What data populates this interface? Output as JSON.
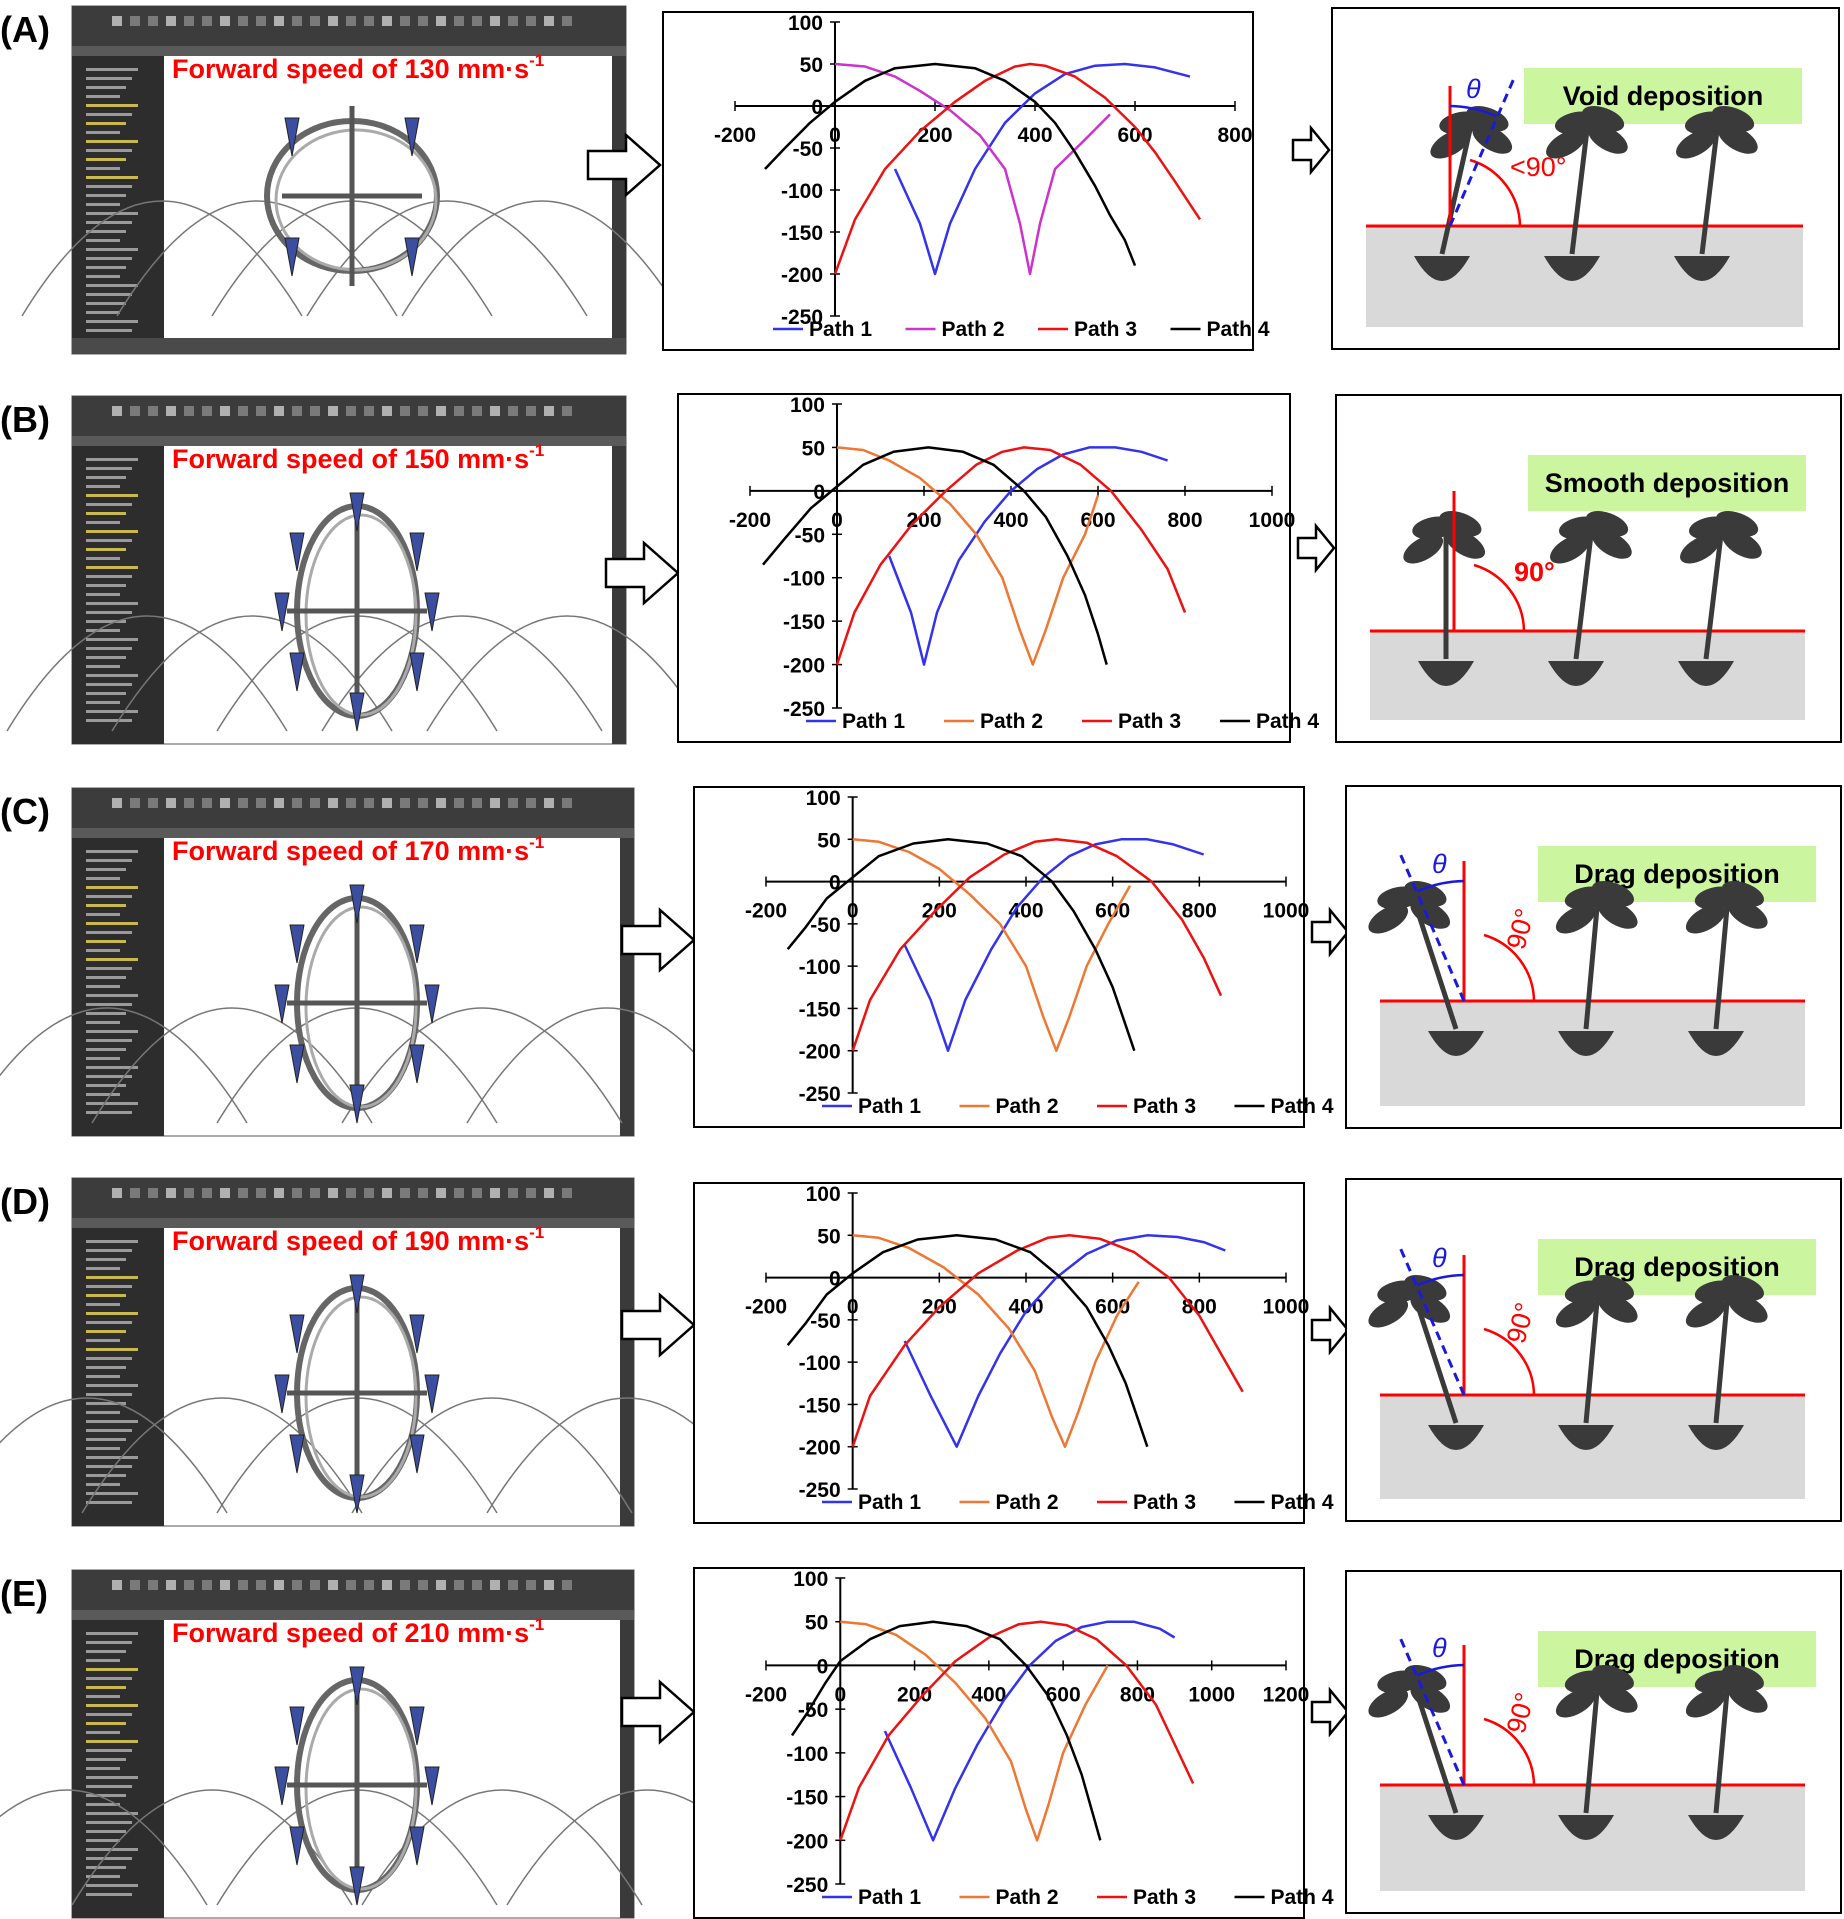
{
  "colors": {
    "path1": "#3333ee",
    "path2_row_a": "#cc33cc",
    "path2": "#ee7733",
    "path3": "#ee1111",
    "path4": "#000000",
    "speed_text": "#ff0000",
    "deposition_label_bg": "#ccf5a0",
    "soil": "#d9d9d9",
    "plant": "#3a3a3a",
    "angle_theta": "#1a1adc",
    "angle_right": "#ff0000",
    "cad_toolbar": "#3c3c3c",
    "cad_tree": "#2d2d2d",
    "cad_tree_highlight": "#c9b84a",
    "cad_blade": "#3c4ea0"
  },
  "arrow_icon": "right-arrow-outline",
  "rows": [
    {
      "label": "(A)",
      "speed_prefix": "Forward speed of 130 mm·s",
      "speed_sup": "-1",
      "deposition": "Void deposition",
      "right_angle_text": "<90°",
      "show_theta": true,
      "theta_symbol": "θ",
      "theta_side": "right",
      "chart_data": {
        "type": "line",
        "title": "",
        "xlabel": "",
        "ylabel": "",
        "xlim": [
          -200,
          800
        ],
        "ylim": [
          -250,
          100
        ],
        "xticks": [
          "-200",
          "0",
          "200",
          "400",
          "600",
          "800"
        ],
        "yticks": [
          "100",
          "50",
          "0",
          "-50",
          "-100",
          "-150",
          "-200",
          "-250"
        ],
        "legend": "bottom",
        "series": [
          {
            "name": "Path 1",
            "color": "#3333ee",
            "x": [
              120,
              170,
              200,
              230,
              280,
              340,
              400,
              460,
              520,
              580,
              640,
              710
            ],
            "y": [
              -75,
              -140,
              -200,
              -140,
              -75,
              -20,
              15,
              38,
              48,
              50,
              46,
              35
            ]
          },
          {
            "name": "Path 2",
            "color": "#cc33cc",
            "x": [
              0,
              60,
              120,
              170,
              230,
              290,
              340,
              370,
              390,
              410,
              440,
              500,
              550
            ],
            "y": [
              50,
              47,
              35,
              18,
              -5,
              -35,
              -75,
              -140,
              -200,
              -140,
              -75,
              -40,
              -10
            ]
          },
          {
            "name": "Path 3",
            "color": "#ee1111",
            "x": [
              0,
              40,
              100,
              170,
              240,
              300,
              360,
              390,
              420,
              480,
              540,
              600,
              640,
              680,
              730
            ],
            "y": [
              -200,
              -135,
              -75,
              -30,
              5,
              30,
              47,
              50,
              48,
              35,
              10,
              -25,
              -55,
              -90,
              -135
            ]
          },
          {
            "name": "Path 4",
            "color": "#000000",
            "x": [
              -140,
              -100,
              -50,
              0,
              60,
              120,
              200,
              280,
              340,
              400,
              440,
              480,
              520,
              550,
              580,
              600
            ],
            "y": [
              -75,
              -50,
              -20,
              5,
              30,
              45,
              50,
              45,
              30,
              5,
              -20,
              -55,
              -95,
              -130,
              -160,
              -190
            ]
          }
        ]
      }
    },
    {
      "label": "(B)",
      "speed_prefix": "Forward speed of 150 mm·s",
      "speed_sup": "-1",
      "deposition": "Smooth deposition",
      "right_angle_text": "90°",
      "show_theta": false,
      "theta_symbol": "",
      "theta_side": "none",
      "chart_data": {
        "type": "line",
        "title": "",
        "xlabel": "",
        "ylabel": "",
        "xlim": [
          -200,
          1000
        ],
        "ylim": [
          -250,
          100
        ],
        "xticks": [
          "-200",
          "0",
          "200",
          "400",
          "600",
          "800",
          "1000"
        ],
        "yticks": [
          "100",
          "50",
          "0",
          "-50",
          "-100",
          "-150",
          "-200",
          "-250"
        ],
        "legend": "bottom",
        "series": [
          {
            "name": "Path 1",
            "color": "#3333ee",
            "x": [
              120,
              170,
              200,
              230,
              280,
              340,
              400,
              460,
              520,
              580,
              640,
              700,
              760
            ],
            "y": [
              -75,
              -140,
              -200,
              -140,
              -80,
              -35,
              0,
              25,
              42,
              50,
              50,
              45,
              35
            ]
          },
          {
            "name": "Path 2",
            "color": "#ee7733",
            "x": [
              0,
              60,
              120,
              190,
              260,
              320,
              380,
              420,
              450,
              480,
              520,
              570,
              600
            ],
            "y": [
              50,
              47,
              35,
              15,
              -15,
              -50,
              -100,
              -160,
              -200,
              -160,
              -100,
              -50,
              -5
            ]
          },
          {
            "name": "Path 3",
            "color": "#ee1111",
            "x": [
              0,
              40,
              100,
              170,
              250,
              320,
              380,
              430,
              490,
              560,
              630,
              700,
              760,
              800
            ],
            "y": [
              -200,
              -140,
              -85,
              -40,
              0,
              30,
              45,
              50,
              47,
              30,
              0,
              -45,
              -90,
              -140
            ]
          },
          {
            "name": "Path 4",
            "color": "#000000",
            "x": [
              -170,
              -120,
              -60,
              0,
              60,
              130,
              210,
              290,
              360,
              430,
              480,
              530,
              570,
              600,
              620
            ],
            "y": [
              -85,
              -55,
              -20,
              5,
              30,
              45,
              50,
              45,
              30,
              0,
              -30,
              -75,
              -120,
              -165,
              -200
            ]
          }
        ]
      }
    },
    {
      "label": "(C)",
      "speed_prefix": "Forward speed of 170 mm·s",
      "speed_sup": "-1",
      "deposition": "Drag deposition",
      "right_angle_text": "90°",
      "show_theta": true,
      "theta_symbol": "θ",
      "theta_side": "left",
      "chart_data": {
        "type": "line",
        "title": "",
        "xlabel": "",
        "ylabel": "",
        "xlim": [
          -200,
          1000
        ],
        "ylim": [
          -250,
          100
        ],
        "xticks": [
          "-200",
          "0",
          "200",
          "400",
          "600",
          "800",
          "1000"
        ],
        "yticks": [
          "100",
          "50",
          "0",
          "-50",
          "-100",
          "-150",
          "-200",
          "-250"
        ],
        "legend": "bottom",
        "series": [
          {
            "name": "Path 1",
            "color": "#3333ee",
            "x": [
              120,
              180,
              220,
              260,
              320,
              380,
              440,
              500,
              560,
              620,
              680,
              740,
              810
            ],
            "y": [
              -75,
              -140,
              -200,
              -140,
              -80,
              -30,
              5,
              30,
              44,
              50,
              50,
              44,
              32
            ]
          },
          {
            "name": "Path 2",
            "color": "#ee7733",
            "x": [
              0,
              60,
              130,
              200,
              270,
              340,
              400,
              440,
              470,
              500,
              540,
              590,
              640
            ],
            "y": [
              50,
              47,
              35,
              15,
              -15,
              -50,
              -100,
              -160,
              -200,
              -160,
              -100,
              -50,
              -5
            ]
          },
          {
            "name": "Path 3",
            "color": "#ee1111",
            "x": [
              0,
              40,
              110,
              190,
              270,
              350,
              420,
              470,
              540,
              610,
              690,
              760,
              810,
              850
            ],
            "y": [
              -200,
              -140,
              -80,
              -35,
              5,
              32,
              47,
              50,
              46,
              30,
              0,
              -45,
              -90,
              -135
            ]
          },
          {
            "name": "Path 4",
            "color": "#000000",
            "x": [
              -150,
              -110,
              -60,
              0,
              60,
              140,
              220,
              310,
              390,
              460,
              510,
              560,
              600,
              630,
              650
            ],
            "y": [
              -80,
              -55,
              -20,
              5,
              30,
              45,
              50,
              45,
              30,
              0,
              -35,
              -80,
              -125,
              -170,
              -200
            ]
          }
        ]
      }
    },
    {
      "label": "(D)",
      "speed_prefix": "Forward speed of 190 mm·s",
      "speed_sup": "-1",
      "deposition": "Drag deposition",
      "right_angle_text": "90°",
      "show_theta": true,
      "theta_symbol": "θ",
      "theta_side": "left",
      "chart_data": {
        "type": "line",
        "title": "",
        "xlabel": "",
        "ylabel": "",
        "xlim": [
          -200,
          1000
        ],
        "ylim": [
          -250,
          100
        ],
        "xticks": [
          "-200",
          "0",
          "200",
          "400",
          "600",
          "800",
          "1000"
        ],
        "yticks": [
          "100",
          "50",
          "0",
          "-50",
          "-100",
          "-150",
          "-200",
          "-250"
        ],
        "legend": "bottom",
        "series": [
          {
            "name": "Path 1",
            "color": "#3333ee",
            "x": [
              120,
              180,
              240,
              290,
              340,
              400,
              470,
              540,
              610,
              680,
              750,
              810,
              860
            ],
            "y": [
              -75,
              -140,
              -200,
              -140,
              -90,
              -40,
              0,
              28,
              44,
              50,
              48,
              42,
              32
            ]
          },
          {
            "name": "Path 2",
            "color": "#ee7733",
            "x": [
              0,
              60,
              130,
              210,
              290,
              360,
              420,
              460,
              490,
              520,
              560,
              610,
              660
            ],
            "y": [
              50,
              47,
              35,
              12,
              -20,
              -60,
              -110,
              -165,
              -200,
              -160,
              -100,
              -45,
              -5
            ]
          },
          {
            "name": "Path 3",
            "color": "#ee1111",
            "x": [
              0,
              40,
              120,
              200,
              290,
              380,
              450,
              500,
              570,
              650,
              730,
              800,
              850,
              900
            ],
            "y": [
              -200,
              -140,
              -80,
              -35,
              5,
              32,
              47,
              50,
              46,
              30,
              0,
              -45,
              -90,
              -135
            ]
          },
          {
            "name": "Path 4",
            "color": "#000000",
            "x": [
              -150,
              -110,
              -60,
              0,
              70,
              150,
              240,
              330,
              410,
              480,
              540,
              590,
              630,
              660,
              680
            ],
            "y": [
              -80,
              -55,
              -20,
              5,
              30,
              45,
              50,
              45,
              30,
              0,
              -35,
              -80,
              -125,
              -170,
              -200
            ]
          }
        ]
      }
    },
    {
      "label": "(E)",
      "speed_prefix": "Forward speed of 210 mm·s",
      "speed_sup": "-1",
      "deposition": "Drag deposition",
      "right_angle_text": "90°",
      "show_theta": true,
      "theta_symbol": "θ",
      "theta_side": "left",
      "chart_data": {
        "type": "line",
        "title": "",
        "xlabel": "",
        "ylabel": "",
        "xlim": [
          -200,
          1200
        ],
        "ylim": [
          -250,
          100
        ],
        "xticks": [
          "-200",
          "0",
          "200",
          "400",
          "600",
          "800",
          "1000",
          "1200"
        ],
        "yticks": [
          "100",
          "50",
          "0",
          "-50",
          "-100",
          "-150",
          "-200",
          "-250"
        ],
        "legend": "bottom",
        "series": [
          {
            "name": "Path 1",
            "color": "#3333ee",
            "x": [
              120,
              190,
              250,
              310,
              370,
              440,
              510,
              580,
              650,
              720,
              790,
              860,
              900
            ],
            "y": [
              -75,
              -140,
              -200,
              -140,
              -90,
              -40,
              0,
              28,
              44,
              50,
              50,
              42,
              32
            ]
          },
          {
            "name": "Path 2",
            "color": "#ee7733",
            "x": [
              0,
              70,
              150,
              230,
              310,
              390,
              460,
              500,
              530,
              560,
              600,
              660,
              720
            ],
            "y": [
              50,
              47,
              35,
              12,
              -20,
              -60,
              -110,
              -165,
              -200,
              -160,
              -100,
              -45,
              0
            ]
          },
          {
            "name": "Path 3",
            "color": "#ee1111",
            "x": [
              0,
              50,
              130,
              220,
              310,
              400,
              480,
              540,
              610,
              690,
              770,
              850,
              900,
              950
            ],
            "y": [
              -200,
              -140,
              -80,
              -35,
              5,
              32,
              47,
              50,
              46,
              30,
              0,
              -45,
              -90,
              -135
            ]
          },
          {
            "name": "Path 4",
            "color": "#000000",
            "x": [
              -130,
              -90,
              -40,
              0,
              80,
              160,
              250,
              340,
              430,
              500,
              560,
              610,
              650,
              680,
              700
            ],
            "y": [
              -80,
              -55,
              -20,
              5,
              30,
              45,
              50,
              45,
              30,
              0,
              -35,
              -80,
              -125,
              -170,
              -200
            ]
          }
        ]
      }
    }
  ]
}
